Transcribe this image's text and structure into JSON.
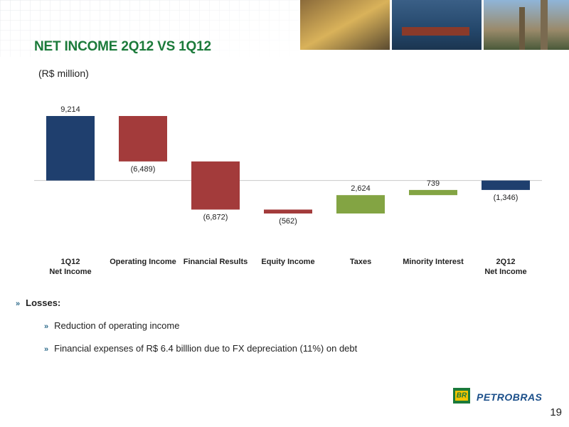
{
  "chart_data": {
    "type": "waterfall",
    "title": "NET INCOME 2Q12 VS 1Q12",
    "subtitle": "(R$ million)",
    "categories": [
      "1Q12\nNet Income",
      "Operating Income",
      "Financial Results",
      "Equity Income",
      "Taxes",
      "Minority Interest",
      "2Q12\nNet Income"
    ],
    "values": [
      9214,
      -6489,
      -6872,
      -562,
      2624,
      739,
      -1346
    ],
    "value_labels": [
      "9,214",
      "(6,489)",
      "(6,872)",
      "(562)",
      "2,624",
      "739",
      "(1,346)"
    ],
    "measures": [
      "absolute",
      "relative",
      "relative",
      "relative",
      "relative",
      "relative",
      "total"
    ],
    "colors": [
      "#1f3f6e",
      "#a33b3b",
      "#a33b3b",
      "#a33b3b",
      "#83a443",
      "#83a443",
      "#1f3f6e"
    ]
  },
  "bullets": {
    "heading": "Losses:",
    "items": [
      "Reduction of operating income",
      "Financial expenses of R$ 6.4 billlion due to FX depreciation (11%) on debt"
    ]
  },
  "footer": {
    "brand": "PETROBRAS",
    "logo": "BR",
    "page": "19"
  }
}
